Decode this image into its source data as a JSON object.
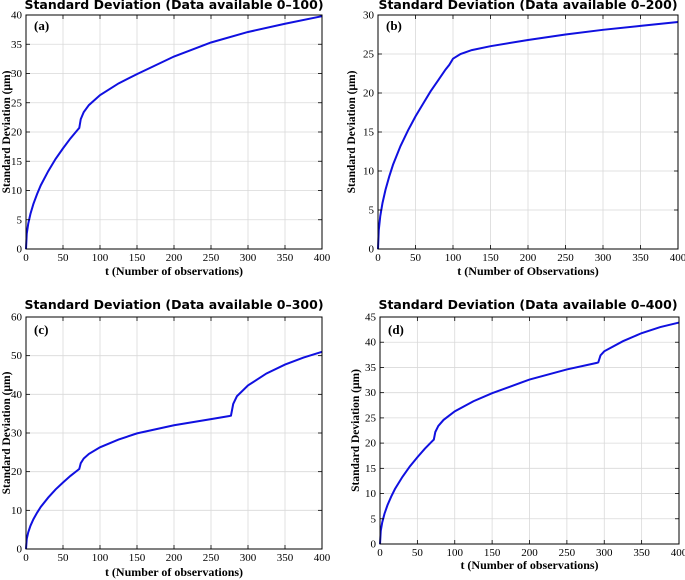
{
  "chart_data": [
    {
      "type": "line",
      "panel_label": "(a)",
      "title": "Standard Deviation (Data available 0–100)",
      "xlabel": "t (Number of observations)",
      "ylabel": "Standard Deviation (μm)",
      "xlim": [
        0,
        400
      ],
      "ylim": [
        0,
        40
      ],
      "xticks": [
        0,
        50,
        100,
        150,
        200,
        250,
        300,
        350,
        400
      ],
      "yticks": [
        0,
        5,
        10,
        15,
        20,
        25,
        30,
        35,
        40
      ],
      "grid": true,
      "series": [
        {
          "color": "#1010e0",
          "x": [
            0,
            1,
            3,
            6,
            10,
            15,
            20,
            30,
            40,
            50,
            60,
            70,
            72,
            74,
            78,
            85,
            100,
            125,
            150,
            200,
            250,
            300,
            350,
            400
          ],
          "y": [
            0,
            2.6,
            4.3,
            6.0,
            7.7,
            9.4,
            10.9,
            13.3,
            15.4,
            17.2,
            18.9,
            20.4,
            20.7,
            22.2,
            23.4,
            24.6,
            26.3,
            28.3,
            29.9,
            32.9,
            35.3,
            37.1,
            38.5,
            39.8
          ]
        }
      ]
    },
    {
      "type": "line",
      "panel_label": "(b)",
      "title": "Standard Deviation (Data available 0–200)",
      "xlabel": "t (Number of Observations)",
      "ylabel": "Standard  Deviation (μm)",
      "xlim": [
        0,
        400
      ],
      "ylim": [
        0,
        30
      ],
      "xticks": [
        0,
        50,
        100,
        150,
        200,
        250,
        300,
        350,
        400
      ],
      "yticks": [
        0,
        5,
        10,
        15,
        20,
        25,
        30
      ],
      "grid": true,
      "series": [
        {
          "color": "#1010e0",
          "x": [
            0,
            1,
            3,
            6,
            10,
            15,
            20,
            30,
            40,
            50,
            60,
            70,
            80,
            90,
            95,
            100,
            110,
            125,
            150,
            200,
            250,
            300,
            350,
            400
          ],
          "y": [
            0,
            2.4,
            4.2,
            5.9,
            7.6,
            9.3,
            10.8,
            13.2,
            15.2,
            17.0,
            18.6,
            20.2,
            21.6,
            23.0,
            23.6,
            24.4,
            25.0,
            25.5,
            26.0,
            26.8,
            27.5,
            28.1,
            28.6,
            29.1
          ]
        }
      ]
    },
    {
      "type": "line",
      "panel_label": "(c)",
      "title": "Standard Deviation (Data available 0–300)",
      "xlabel": "t (Number of observations)",
      "ylabel": "Standard Deviation (μm)",
      "xlim": [
        0,
        400
      ],
      "ylim": [
        0,
        60
      ],
      "xticks": [
        0,
        50,
        100,
        150,
        200,
        250,
        300,
        350,
        400
      ],
      "yticks": [
        0,
        10,
        20,
        30,
        40,
        50,
        60
      ],
      "grid": true,
      "series": [
        {
          "color": "#1010e0",
          "x": [
            0,
            1,
            3,
            6,
            10,
            15,
            20,
            30,
            40,
            50,
            60,
            70,
            72,
            74,
            78,
            85,
            100,
            125,
            150,
            200,
            250,
            275,
            277,
            280,
            285,
            300,
            325,
            350,
            375,
            400
          ],
          "y": [
            0,
            2.6,
            4.3,
            6.0,
            7.7,
            9.4,
            10.9,
            13.3,
            15.4,
            17.2,
            18.9,
            20.4,
            20.7,
            22.2,
            23.4,
            24.6,
            26.3,
            28.3,
            29.9,
            32.0,
            33.6,
            34.4,
            34.5,
            37.5,
            39.5,
            42.3,
            45.4,
            47.7,
            49.5,
            51.0
          ]
        }
      ]
    },
    {
      "type": "line",
      "panel_label": "(d)",
      "title": "Standard Deviation (Data available 0–400)",
      "xlabel": "t (Number of observations)",
      "ylabel": "Standard Deviation (μm)",
      "xlim": [
        0,
        400
      ],
      "ylim": [
        0,
        45
      ],
      "xticks": [
        0,
        50,
        100,
        150,
        200,
        250,
        300,
        350,
        400
      ],
      "yticks": [
        0,
        5,
        10,
        15,
        20,
        25,
        30,
        35,
        40,
        45
      ],
      "grid": true,
      "series": [
        {
          "color": "#1010e0",
          "x": [
            0,
            1,
            3,
            6,
            10,
            15,
            20,
            30,
            40,
            50,
            60,
            70,
            72,
            74,
            78,
            85,
            100,
            125,
            150,
            200,
            250,
            290,
            292,
            295,
            300,
            325,
            350,
            375,
            400
          ],
          "y": [
            0,
            2.6,
            4.3,
            6.0,
            7.7,
            9.4,
            10.9,
            13.3,
            15.4,
            17.2,
            18.9,
            20.4,
            20.7,
            22.2,
            23.4,
            24.6,
            26.3,
            28.3,
            29.9,
            32.6,
            34.6,
            35.9,
            36.0,
            37.4,
            38.2,
            40.2,
            41.8,
            43.0,
            43.9
          ]
        }
      ]
    }
  ]
}
